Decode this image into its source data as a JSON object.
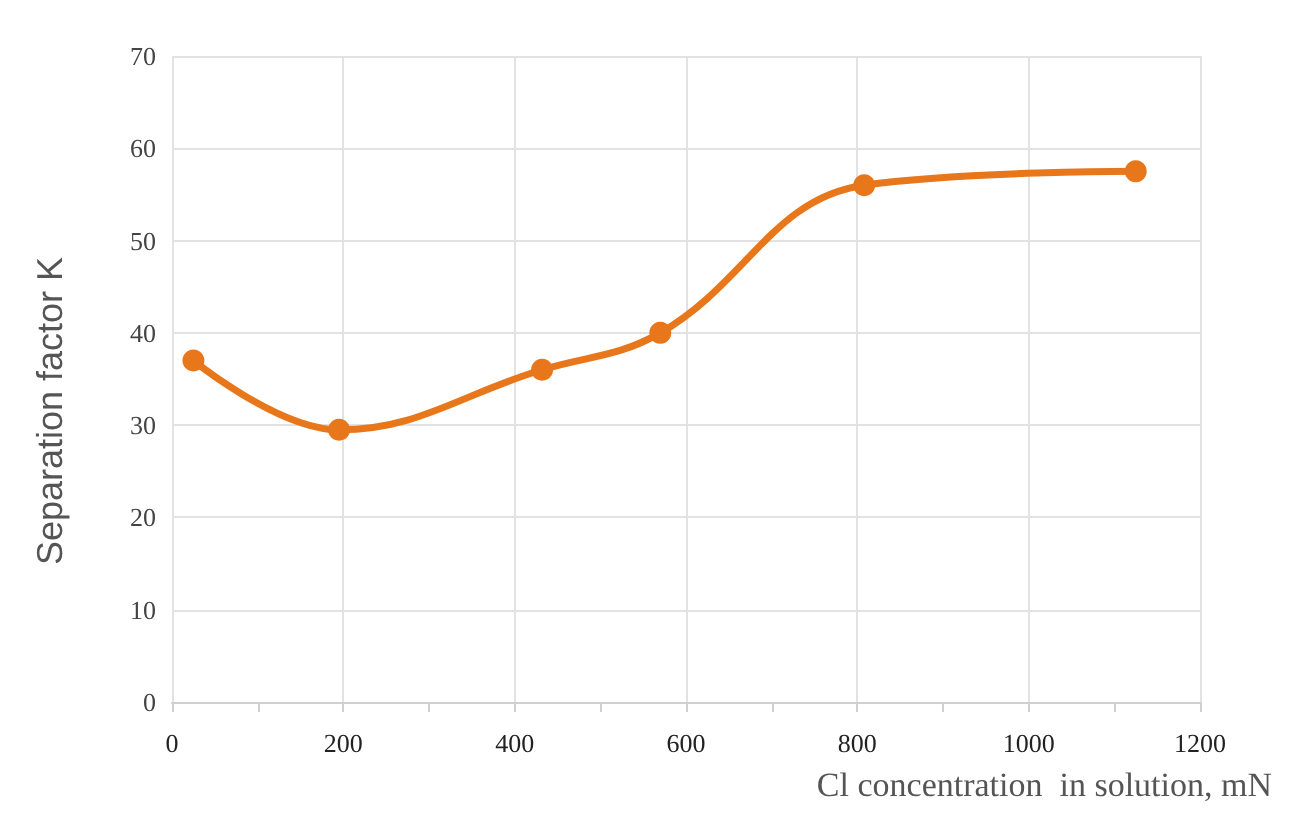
{
  "chart_data": {
    "type": "line",
    "xlabel": "Cl concentration  in solution, mN",
    "ylabel": "Separation factor K",
    "x": [
      25,
      195,
      432,
      570,
      808,
      1125
    ],
    "series": [
      {
        "color": "#e8761b",
        "values": [
          37,
          29.5,
          36,
          40,
          56,
          57.5
        ]
      }
    ],
    "xlim": [
      0,
      1200
    ],
    "xticks": [
      0,
      200,
      400,
      600,
      800,
      1000,
      1200
    ],
    "ylim": [
      0,
      70
    ],
    "yticks": [
      0,
      10,
      20,
      30,
      40,
      50,
      60,
      70
    ],
    "grid": true,
    "marker": "circle",
    "line_style": "solid"
  }
}
